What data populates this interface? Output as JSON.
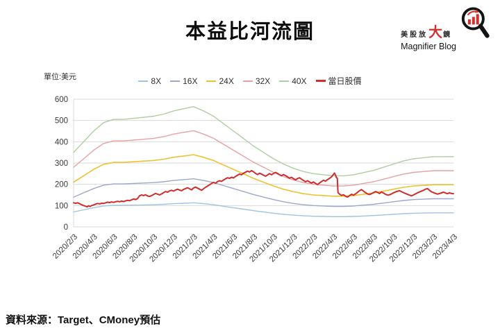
{
  "header": {
    "title": "本益比河流圖"
  },
  "logo": {
    "cn_small_1": "美股放",
    "cn_big": "大",
    "cn_small_2": "鏡",
    "en": "Magnifier Blog",
    "accent_color": "#d3312e"
  },
  "footer": {
    "source": "資料來源：Target、CMoney預估"
  },
  "chart_data": {
    "type": "line",
    "title": "本益比河流圖",
    "unit_label": "單位:美元",
    "grid": true,
    "legend_position": "top",
    "ylim": [
      0,
      600
    ],
    "y_ticks": [
      0,
      100,
      200,
      300,
      400,
      500,
      600
    ],
    "x_tick_labels": [
      "2020/2/3",
      "2020/4/3",
      "2020/6/3",
      "2020/8/3",
      "2020/10/3",
      "2020/12/3",
      "2021/2/3",
      "2021/4/3",
      "2021/6/3",
      "2021/8/3",
      "2021/10/3",
      "2021/12/3",
      "2022/2/3",
      "2022/4/3",
      "2022/6/3",
      "2022/8/3",
      "2022/10/3",
      "2022/12/3",
      "2023/2/3",
      "2023/4/3"
    ],
    "x_months_start": "2020/2",
    "x_months_count": 39,
    "series": [
      {
        "name": "8X",
        "color": "#9dc3e6",
        "width": 1.4,
        "values": [
          70,
          80,
          90,
          98,
          101,
          101,
          102,
          103,
          104,
          106,
          109,
          111,
          113,
          109,
          104,
          97,
          90,
          83,
          76,
          70,
          64,
          59,
          55,
          52,
          50,
          49,
          48,
          48,
          49,
          51,
          53,
          56,
          59,
          62,
          64,
          65,
          66,
          66,
          66
        ]
      },
      {
        "name": "16X",
        "color": "#9ba7d0",
        "width": 1.4,
        "values": [
          140,
          160,
          180,
          196,
          202,
          202,
          204,
          206,
          208,
          212,
          218,
          222,
          226,
          218,
          208,
          194,
          180,
          166,
          152,
          140,
          128,
          118,
          110,
          104,
          100,
          98,
          96,
          96,
          98,
          102,
          106,
          112,
          118,
          124,
          128,
          130,
          132,
          132,
          132
        ]
      },
      {
        "name": "24X",
        "color": "#efc12f",
        "width": 1.6,
        "values": [
          210,
          240,
          270,
          294,
          303,
          303,
          306,
          309,
          312,
          318,
          327,
          333,
          339,
          327,
          312,
          291,
          270,
          249,
          228,
          210,
          192,
          177,
          165,
          156,
          150,
          147,
          144,
          144,
          147,
          153,
          159,
          168,
          177,
          186,
          192,
          195,
          198,
          198,
          198
        ]
      },
      {
        "name": "32X",
        "color": "#e8a0a0",
        "width": 1.4,
        "values": [
          280,
          320,
          360,
          392,
          404,
          404,
          408,
          412,
          416,
          424,
          436,
          444,
          452,
          436,
          416,
          388,
          360,
          332,
          304,
          280,
          256,
          236,
          220,
          208,
          200,
          196,
          192,
          192,
          196,
          204,
          212,
          224,
          236,
          248,
          256,
          260,
          264,
          264,
          264
        ]
      },
      {
        "name": "40X",
        "color": "#aecda1",
        "width": 1.4,
        "values": [
          350,
          400,
          450,
          490,
          505,
          505,
          510,
          515,
          520,
          530,
          545,
          555,
          565,
          545,
          520,
          485,
          450,
          415,
          380,
          350,
          320,
          295,
          275,
          260,
          250,
          245,
          240,
          240,
          245,
          255,
          265,
          280,
          295,
          310,
          320,
          325,
          330,
          330,
          330
        ]
      },
      {
        "name": "當日股價",
        "color": "#d32a2a",
        "width": 2,
        "points": [
          [
            0,
            113
          ],
          [
            0.2,
            111
          ],
          [
            0.4,
            113
          ],
          [
            0.6,
            109
          ],
          [
            0.8,
            104
          ],
          [
            1.0,
            100
          ],
          [
            1.2,
            97
          ],
          [
            1.35,
            94
          ],
          [
            1.5,
            99
          ],
          [
            1.65,
            96
          ],
          [
            1.8,
            100
          ],
          [
            2.0,
            103
          ],
          [
            2.2,
            107
          ],
          [
            2.4,
            110
          ],
          [
            2.6,
            108
          ],
          [
            2.8,
            111
          ],
          [
            3.0,
            110
          ],
          [
            3.2,
            113
          ],
          [
            3.4,
            116
          ],
          [
            3.6,
            114
          ],
          [
            3.8,
            117
          ],
          [
            4.0,
            115
          ],
          [
            4.2,
            118
          ],
          [
            4.4,
            120
          ],
          [
            4.6,
            118
          ],
          [
            4.8,
            121
          ],
          [
            5.0,
            119
          ],
          [
            5.2,
            122
          ],
          [
            5.4,
            125
          ],
          [
            5.6,
            123
          ],
          [
            5.8,
            127
          ],
          [
            6.0,
            131
          ],
          [
            6.2,
            128
          ],
          [
            6.4,
            133
          ],
          [
            6.6,
            146
          ],
          [
            6.8,
            150
          ],
          [
            7.0,
            147
          ],
          [
            7.2,
            151
          ],
          [
            7.4,
            145
          ],
          [
            7.6,
            143
          ],
          [
            7.8,
            147
          ],
          [
            8.0,
            152
          ],
          [
            8.2,
            157
          ],
          [
            8.4,
            154
          ],
          [
            8.6,
            150
          ],
          [
            8.8,
            155
          ],
          [
            9.0,
            161
          ],
          [
            9.2,
            166
          ],
          [
            9.4,
            163
          ],
          [
            9.6,
            169
          ],
          [
            9.8,
            172
          ],
          [
            10.0,
            168
          ],
          [
            10.2,
            173
          ],
          [
            10.4,
            177
          ],
          [
            10.6,
            173
          ],
          [
            10.8,
            170
          ],
          [
            11.0,
            176
          ],
          [
            11.2,
            180
          ],
          [
            11.4,
            184
          ],
          [
            11.6,
            179
          ],
          [
            11.8,
            174
          ],
          [
            12.0,
            183
          ],
          [
            12.2,
            187
          ],
          [
            12.4,
            182
          ],
          [
            12.6,
            177
          ],
          [
            12.8,
            172
          ],
          [
            13.0,
            179
          ],
          [
            13.2,
            186
          ],
          [
            13.4,
            192
          ],
          [
            13.6,
            198
          ],
          [
            13.8,
            204
          ],
          [
            14.0,
            209
          ],
          [
            14.2,
            205
          ],
          [
            14.4,
            213
          ],
          [
            14.6,
            217
          ],
          [
            14.8,
            214
          ],
          [
            15.0,
            220
          ],
          [
            15.2,
            226
          ],
          [
            15.4,
            231
          ],
          [
            15.6,
            228
          ],
          [
            15.8,
            233
          ],
          [
            16.0,
            230
          ],
          [
            16.2,
            237
          ],
          [
            16.4,
            243
          ],
          [
            16.6,
            248
          ],
          [
            16.8,
            245
          ],
          [
            17.0,
            252
          ],
          [
            17.2,
            257
          ],
          [
            17.4,
            262
          ],
          [
            17.6,
            258
          ],
          [
            17.8,
            264
          ],
          [
            18.0,
            259
          ],
          [
            18.2,
            251
          ],
          [
            18.4,
            246
          ],
          [
            18.6,
            252
          ],
          [
            18.8,
            248
          ],
          [
            19.0,
            243
          ],
          [
            19.2,
            238
          ],
          [
            19.4,
            244
          ],
          [
            19.6,
            250
          ],
          [
            19.8,
            245
          ],
          [
            20.0,
            251
          ],
          [
            20.2,
            256
          ],
          [
            20.4,
            251
          ],
          [
            20.6,
            245
          ],
          [
            20.8,
            240
          ],
          [
            21.0,
            246
          ],
          [
            21.2,
            241
          ],
          [
            21.4,
            235
          ],
          [
            21.6,
            229
          ],
          [
            21.8,
            233
          ],
          [
            22.0,
            226
          ],
          [
            22.2,
            221
          ],
          [
            22.4,
            227
          ],
          [
            22.6,
            231
          ],
          [
            22.8,
            224
          ],
          [
            23.0,
            218
          ],
          [
            23.2,
            212
          ],
          [
            23.4,
            217
          ],
          [
            23.6,
            211
          ],
          [
            23.8,
            206
          ],
          [
            24.0,
            211
          ],
          [
            24.2,
            204
          ],
          [
            24.4,
            199
          ],
          [
            24.6,
            206
          ],
          [
            24.8,
            213
          ],
          [
            25.0,
            219
          ],
          [
            25.2,
            215
          ],
          [
            25.4,
            222
          ],
          [
            25.6,
            228
          ],
          [
            25.8,
            235
          ],
          [
            26.0,
            247
          ],
          [
            26.1,
            253
          ],
          [
            26.2,
            243
          ],
          [
            26.3,
            231
          ],
          [
            26.38,
            229
          ],
          [
            26.45,
            161
          ],
          [
            26.6,
            154
          ],
          [
            26.8,
            148
          ],
          [
            27.0,
            151
          ],
          [
            27.2,
            144
          ],
          [
            27.4,
            140
          ],
          [
            27.6,
            147
          ],
          [
            27.8,
            153
          ],
          [
            28.0,
            149
          ],
          [
            28.2,
            155
          ],
          [
            28.4,
            162
          ],
          [
            28.6,
            170
          ],
          [
            28.8,
            175
          ],
          [
            29.0,
            168
          ],
          [
            29.2,
            161
          ],
          [
            29.4,
            155
          ],
          [
            29.6,
            152
          ],
          [
            29.8,
            156
          ],
          [
            30.0,
            161
          ],
          [
            30.2,
            166
          ],
          [
            30.4,
            162
          ],
          [
            30.6,
            157
          ],
          [
            30.8,
            164
          ],
          [
            31.0,
            159
          ],
          [
            31.2,
            153
          ],
          [
            31.5,
            149
          ],
          [
            31.8,
            155
          ],
          [
            32.0,
            160
          ],
          [
            32.3,
            166
          ],
          [
            32.6,
            170
          ],
          [
            32.9,
            163
          ],
          [
            33.2,
            157
          ],
          [
            33.5,
            151
          ],
          [
            33.8,
            146
          ],
          [
            34.0,
            150
          ],
          [
            34.2,
            155
          ],
          [
            34.4,
            160
          ],
          [
            34.7,
            166
          ],
          [
            35.0,
            172
          ],
          [
            35.2,
            177
          ],
          [
            35.4,
            180
          ],
          [
            35.6,
            172
          ],
          [
            35.8,
            165
          ],
          [
            36.1,
            159
          ],
          [
            36.4,
            154
          ],
          [
            36.7,
            158
          ],
          [
            37.0,
            163
          ],
          [
            37.2,
            159
          ],
          [
            37.4,
            156
          ],
          [
            37.6,
            160
          ],
          [
            37.8,
            157
          ],
          [
            38.0,
            156
          ]
        ]
      }
    ]
  }
}
